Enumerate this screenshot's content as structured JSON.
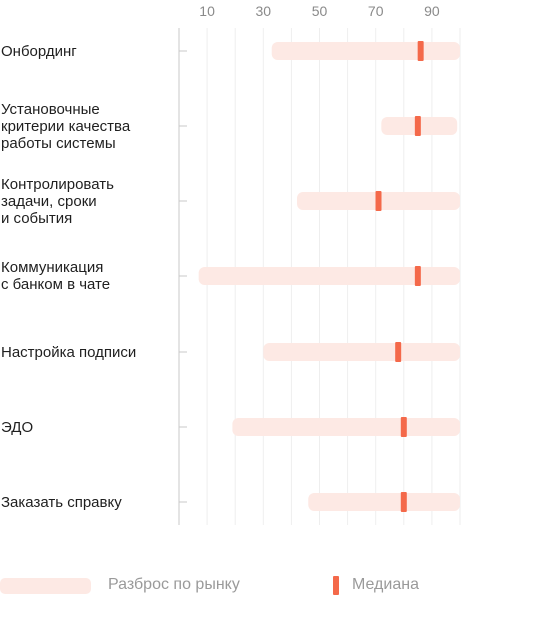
{
  "chart_data": {
    "type": "range",
    "x_ticks": [
      10,
      30,
      50,
      70,
      90
    ],
    "xlim": [
      0,
      100
    ],
    "grid": true,
    "legend_position": "bottom-left",
    "colors": {
      "range": "#fde9e4",
      "median": "#f4694a",
      "axis": "#c8c8c8",
      "grid": "#eeeeee",
      "tick_text": "#8a8a8a"
    },
    "categories": [
      {
        "label": "Онбординг",
        "min": 33,
        "max": 100,
        "median": 86
      },
      {
        "label": "Установочные\nкритерии качества\nработы системы",
        "min": 72,
        "max": 99,
        "median": 85
      },
      {
        "label": "Контролировать\nзадачи, сроки\nи события",
        "min": 42,
        "max": 100,
        "median": 71
      },
      {
        "label": "Коммуникация\nс банком в чате",
        "min": 7,
        "max": 100,
        "median": 85
      },
      {
        "label": "Настройка подписи",
        "min": 30,
        "max": 100,
        "median": 78
      },
      {
        "label": "ЭДО",
        "min": 19,
        "max": 100,
        "median": 80
      },
      {
        "label": "Заказать справку",
        "min": 46,
        "max": 100,
        "median": 80
      }
    ],
    "legend": {
      "range_label": "Разброс по рынку",
      "median_label": "Медиана"
    }
  }
}
